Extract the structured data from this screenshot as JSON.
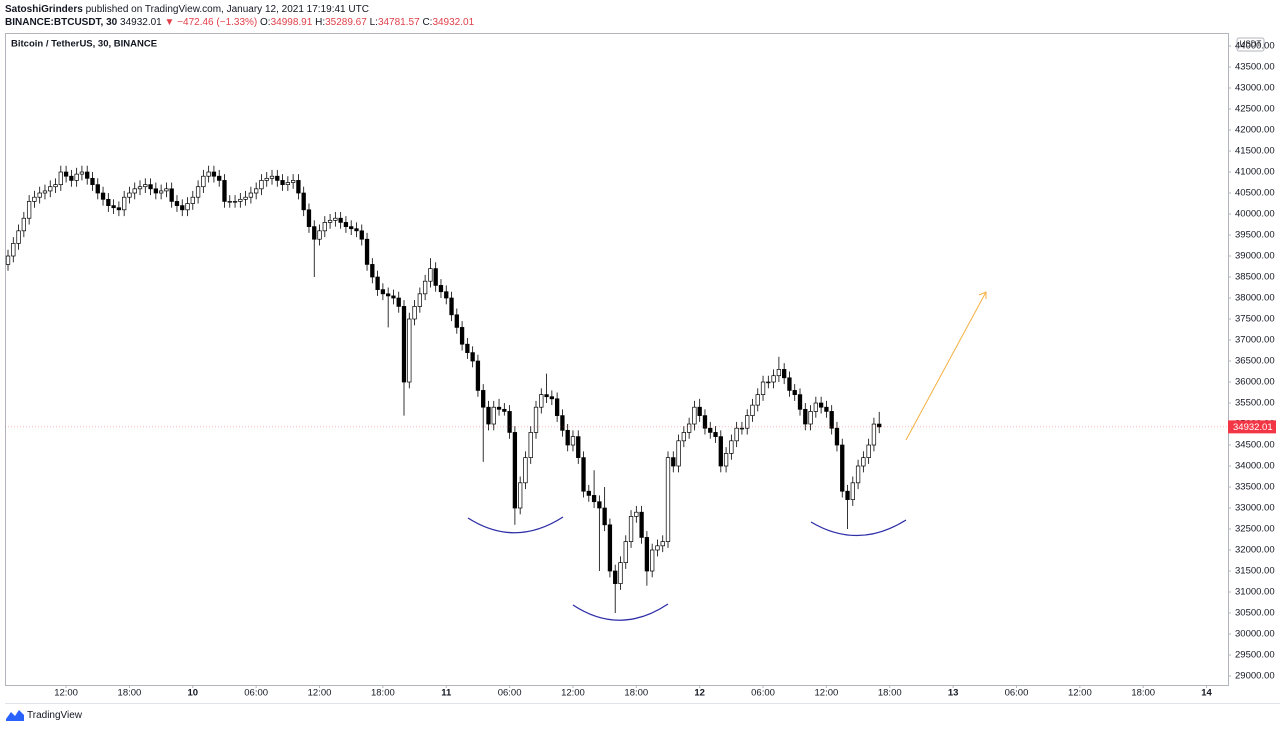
{
  "header": {
    "author": "SatoshiGrinders",
    "published": "published on TradingView.com, January 12, 2021 17:19:41 UTC",
    "symbol": "BINANCE:BTCUSDT, 30",
    "change": "▼ −472.46 (−1.33%)",
    "ohlc_labels": [
      "O:",
      "H:",
      "L:",
      "C:"
    ]
  },
  "footer": {
    "brand": "TradingView"
  },
  "chart_data": {
    "type": "candlestick",
    "title": "Bitcoin / TetherUS, 30, BINANCE",
    "currency": "USDT",
    "up_color": "#ffffff",
    "down_color": "#000000",
    "wick_color": "#000000",
    "last_price_color": "#f23645",
    "xlim": [
      -0.57,
      231.06
    ],
    "ylim": [
      28786,
      44310
    ],
    "xticks": [
      {
        "value": 11,
        "label": "12:00"
      },
      {
        "value": 23,
        "label": "18:00"
      },
      {
        "value": 35,
        "label": "10"
      },
      {
        "value": 47,
        "label": "06:00"
      },
      {
        "value": 59,
        "label": "12:00"
      },
      {
        "value": 71,
        "label": "18:00"
      },
      {
        "value": 83,
        "label": "11"
      },
      {
        "value": 95,
        "label": "06:00"
      },
      {
        "value": 107,
        "label": "12:00"
      },
      {
        "value": 119,
        "label": "18:00"
      },
      {
        "value": 131,
        "label": "12"
      },
      {
        "value": 143,
        "label": "06:00"
      },
      {
        "value": 155,
        "label": "12:00"
      },
      {
        "value": 167,
        "label": "18:00"
      },
      {
        "value": 179,
        "label": "13"
      },
      {
        "value": 191,
        "label": "06:00"
      },
      {
        "value": 203,
        "label": "12:00"
      },
      {
        "value": 215,
        "label": "18:00"
      },
      {
        "value": 227,
        "label": "14"
      }
    ],
    "yticks": [
      {
        "value": 29000,
        "label": "29000.00"
      },
      {
        "value": 29500,
        "label": "29500.00"
      },
      {
        "value": 30000,
        "label": "30000.00"
      },
      {
        "value": 30500,
        "label": "30500.00"
      },
      {
        "value": 31000,
        "label": "31000.00"
      },
      {
        "value": 31500,
        "label": "31500.00"
      },
      {
        "value": 32000,
        "label": "32000.00"
      },
      {
        "value": 32500,
        "label": "32500.00"
      },
      {
        "value": 33000,
        "label": "33000.00"
      },
      {
        "value": 33500,
        "label": "33500.00"
      },
      {
        "value": 34000,
        "label": "34000.00"
      },
      {
        "value": 34500,
        "label": "34500.00"
      },
      {
        "value": 35000,
        "label": "35000.00"
      },
      {
        "value": 35500,
        "label": "35500.00"
      },
      {
        "value": 36000,
        "label": "36000.00"
      },
      {
        "value": 36500,
        "label": "36500.00"
      },
      {
        "value": 37000,
        "label": "37000.00"
      },
      {
        "value": 37500,
        "label": "37500.00"
      },
      {
        "value": 38000,
        "label": "38000.00"
      },
      {
        "value": 38500,
        "label": "38500.00"
      },
      {
        "value": 39000,
        "label": "39000.00"
      },
      {
        "value": 39500,
        "label": "39500.00"
      },
      {
        "value": 40000,
        "label": "40000.00"
      },
      {
        "value": 40500,
        "label": "40500.00"
      },
      {
        "value": 41000,
        "label": "41000.00"
      },
      {
        "value": 41500,
        "label": "41500.00"
      },
      {
        "value": 42000,
        "label": "42000.00"
      },
      {
        "value": 42500,
        "label": "42500.00"
      },
      {
        "value": 43000,
        "label": "43000.00"
      },
      {
        "value": 43500,
        "label": "43500.00"
      },
      {
        "value": 44000,
        "label": "44000.00"
      }
    ],
    "open": [
      38800,
      39000,
      39300,
      39600,
      39900,
      40300,
      40400,
      40500,
      40550,
      40650,
      40700,
      41000,
      40900,
      40800,
      40950,
      41000,
      40850,
      40700,
      40500,
      40350,
      40200,
      40150,
      40100,
      40400,
      40500,
      40600,
      40650,
      40700,
      40600,
      40500,
      40550,
      40600,
      40300,
      40200,
      40100,
      40250,
      40400,
      40650,
      40900,
      41000,
      40900,
      40800,
      40300,
      40300,
      40300,
      40350,
      40400,
      40500,
      40600,
      40800,
      40850,
      40900,
      40800,
      40700,
      40750,
      40800,
      40500,
      40100,
      39700,
      39400,
      39600,
      39800,
      39850,
      39900,
      39800,
      39700,
      39650,
      39600,
      39400,
      38800,
      38500,
      38200,
      38100,
      38050,
      38000,
      37800,
      36000,
      37500,
      37800,
      38100,
      38400,
      38700,
      38300,
      38150,
      38000,
      37600,
      37300,
      36900,
      36700,
      36500,
      35800,
      35400,
      35000,
      35400,
      35350,
      35300,
      34800,
      33000,
      33600,
      34200,
      34800,
      35400,
      35700,
      35650,
      35600,
      35200,
      34850,
      34500,
      34700,
      34200,
      33400,
      33300,
      33150,
      33000,
      32600,
      31500,
      31200,
      31700,
      32200,
      32800,
      32900,
      32300,
      31500,
      32000,
      32100,
      32200,
      34200,
      34000,
      34600,
      34800,
      35000,
      35400,
      35200,
      34900,
      34800,
      34700,
      34000,
      34300,
      34600,
      34900,
      34900,
      35200,
      35450,
      35700,
      36000,
      36000,
      36150,
      36300,
      36100,
      35800,
      35700,
      35350,
      35000,
      35300,
      35500,
      35400,
      35300,
      34900,
      34500,
      33400,
      33200,
      33600,
      34000,
      34200,
      34500,
      34998.91
    ],
    "high": [
      39150,
      39450,
      39750,
      40050,
      40450,
      40550,
      40650,
      40700,
      40800,
      40850,
      41150,
      41150,
      41050,
      41100,
      41150,
      41150,
      41000,
      40850,
      40650,
      40500,
      40350,
      40300,
      40550,
      40650,
      40750,
      40800,
      40850,
      40850,
      40750,
      40700,
      40750,
      40750,
      40450,
      40350,
      40400,
      40550,
      40800,
      41050,
      41150,
      41150,
      41050,
      40950,
      40450,
      40450,
      40500,
      40550,
      40650,
      40750,
      40950,
      41000,
      41050,
      41050,
      40950,
      40900,
      40950,
      40950,
      40650,
      40250,
      39850,
      39750,
      39950,
      40000,
      40050,
      40050,
      39950,
      39850,
      39800,
      39750,
      39550,
      38950,
      38650,
      38350,
      38250,
      38200,
      38150,
      37950,
      37650,
      37950,
      38250,
      38550,
      38950,
      38850,
      38450,
      38300,
      38150,
      37750,
      37450,
      37050,
      36850,
      36650,
      35950,
      35550,
      35550,
      35600,
      35500,
      35450,
      34950,
      33750,
      34350,
      34950,
      35550,
      35850,
      36200,
      35800,
      35750,
      35350,
      35000,
      34850,
      34850,
      34350,
      33550,
      33900,
      33300,
      33500,
      32750,
      31650,
      31850,
      32350,
      32950,
      33050,
      33050,
      32450,
      32150,
      32250,
      32350,
      34350,
      34350,
      34750,
      34950,
      35150,
      35550,
      35600,
      35350,
      35050,
      34950,
      34850,
      34450,
      34750,
      35050,
      35050,
      35350,
      35600,
      35850,
      36150,
      36150,
      36300,
      36600,
      36450,
      36250,
      35950,
      35850,
      35500,
      35450,
      35650,
      35650,
      35550,
      35450,
      35050,
      34650,
      33550,
      33750,
      34150,
      34350,
      34650,
      35150,
      35289.67
    ],
    "low": [
      38650,
      38850,
      39150,
      39450,
      39750,
      40150,
      40250,
      40350,
      40400,
      40500,
      40550,
      40750,
      40650,
      40650,
      40800,
      40700,
      40550,
      40350,
      40200,
      40050,
      40000,
      39950,
      39950,
      40250,
      40350,
      40450,
      40500,
      40450,
      40350,
      40350,
      40400,
      40150,
      40050,
      39950,
      39950,
      40100,
      40250,
      40500,
      40750,
      40750,
      40650,
      40150,
      40150,
      40150,
      40150,
      40200,
      40250,
      40350,
      40450,
      40650,
      40700,
      40650,
      40550,
      40550,
      40600,
      40350,
      39950,
      39550,
      38500,
      39250,
      39450,
      39650,
      39700,
      39650,
      39550,
      39500,
      39450,
      39250,
      38650,
      38350,
      38050,
      37950,
      37300,
      37850,
      37650,
      35200,
      35850,
      37350,
      37650,
      37950,
      38250,
      38150,
      38000,
      37850,
      37450,
      37150,
      36750,
      36550,
      36350,
      35650,
      34100,
      34850,
      34850,
      35200,
      35200,
      34650,
      32600,
      32850,
      33450,
      34050,
      34650,
      35250,
      35500,
      35450,
      35050,
      34700,
      34350,
      34350,
      34050,
      33250,
      33150,
      33000,
      31500,
      32450,
      31350,
      30500,
      31050,
      31550,
      32050,
      32650,
      32150,
      31150,
      31350,
      31850,
      31950,
      32050,
      33850,
      33850,
      34450,
      34650,
      34850,
      35050,
      34750,
      34650,
      34550,
      33850,
      33850,
      34150,
      34450,
      34750,
      34750,
      35050,
      35300,
      35550,
      35850,
      35850,
      36000,
      35950,
      35650,
      35550,
      35200,
      34850,
      34850,
      35150,
      35250,
      35150,
      34750,
      34350,
      33250,
      32500,
      33050,
      33450,
      33850,
      34050,
      34350,
      34781.57
    ],
    "close": [
      39000,
      39300,
      39600,
      39900,
      40300,
      40400,
      40500,
      40550,
      40650,
      40700,
      41000,
      40900,
      40800,
      40950,
      41000,
      40850,
      40700,
      40500,
      40350,
      40200,
      40150,
      40100,
      40400,
      40500,
      40600,
      40650,
      40700,
      40600,
      40500,
      40550,
      40600,
      40300,
      40200,
      40100,
      40250,
      40400,
      40650,
      40900,
      41000,
      40900,
      40800,
      40300,
      40300,
      40300,
      40350,
      40400,
      40500,
      40600,
      40800,
      40850,
      40900,
      40800,
      40700,
      40750,
      40800,
      40500,
      40100,
      39700,
      39400,
      39600,
      39800,
      39850,
      39900,
      39800,
      39700,
      39650,
      39600,
      39400,
      38800,
      38500,
      38200,
      38100,
      38050,
      38000,
      37800,
      36000,
      37500,
      37800,
      38100,
      38400,
      38700,
      38300,
      38150,
      38000,
      37600,
      37300,
      36900,
      36700,
      36500,
      35800,
      35400,
      35000,
      35400,
      35350,
      35300,
      34800,
      33000,
      33600,
      34200,
      34800,
      35400,
      35700,
      35650,
      35600,
      35200,
      34850,
      34500,
      34700,
      34200,
      33400,
      33300,
      33150,
      33000,
      32600,
      31500,
      31200,
      31700,
      32200,
      32800,
      32900,
      32300,
      31500,
      32000,
      32100,
      32200,
      34200,
      34000,
      34600,
      34800,
      35000,
      35400,
      35200,
      34900,
      34800,
      34700,
      34000,
      34300,
      34600,
      34900,
      34900,
      35200,
      35450,
      35700,
      36000,
      36000,
      36150,
      36300,
      36100,
      35800,
      35700,
      35350,
      35000,
      35300,
      35500,
      35400,
      35300,
      34900,
      34500,
      33400,
      33200,
      33600,
      34000,
      34200,
      34500,
      34998.91,
      34932.01
    ]
  }
}
